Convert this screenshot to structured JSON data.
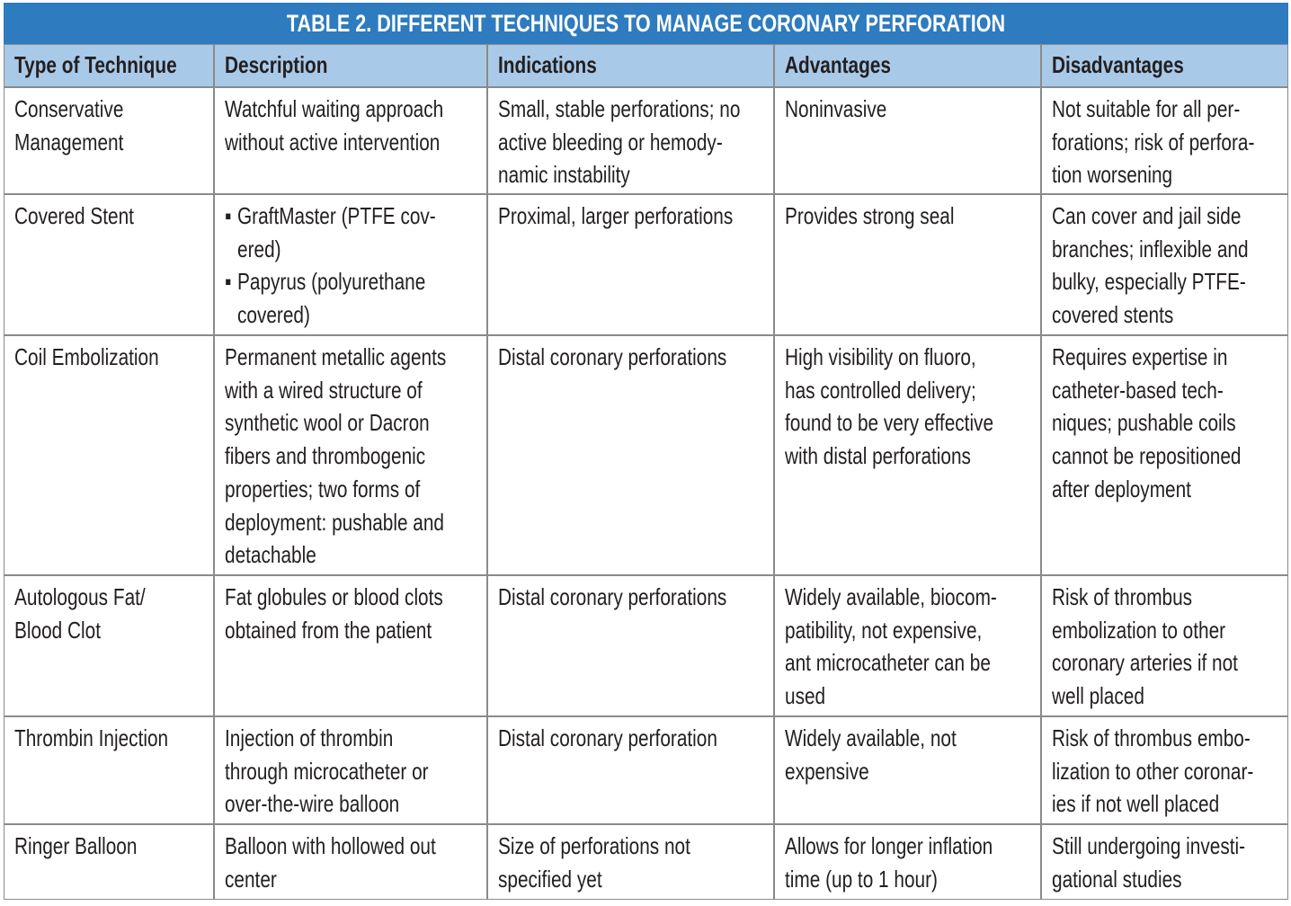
{
  "table": {
    "title": "TABLE 2.  DIFFERENT TECHNIQUES TO MANAGE CORONARY PERFORATION",
    "headers": [
      "Type of Technique",
      "Description",
      "Indications",
      "Advantages",
      "Disadvantages"
    ],
    "rows": [
      [
        [
          "Conservative",
          "Management"
        ],
        [
          "Watchful waiting approach",
          "without active intervention"
        ],
        [
          "Small, stable perforations; no",
          "active bleeding or hemody-",
          "namic instability"
        ],
        [
          "Noninvasive"
        ],
        [
          "Not suitable for all per-",
          "forations; risk of perfora-",
          "tion worsening"
        ]
      ],
      [
        [
          "Covered Stent"
        ],
        {
          "items": [
            [
              "GraftMaster (PTFE cov-",
              "ered)"
            ],
            [
              "Papyrus (polyurethane",
              "covered)"
            ]
          ]
        },
        [
          "Proximal, larger perforations"
        ],
        [
          "Provides strong seal"
        ],
        [
          "Can cover and jail side",
          "branches; inflexible and",
          "bulky, especially PTFE-",
          "covered stents"
        ]
      ],
      [
        [
          "Coil Embolization"
        ],
        [
          "Permanent metallic agents",
          "with a wired structure of",
          "synthetic wool or Dacron",
          "fibers and thrombogenic",
          "properties; two forms of",
          "deployment: pushable and",
          "detachable"
        ],
        [
          "Distal coronary perforations"
        ],
        [
          "High visibility on fluoro,",
          "has controlled delivery;",
          "found to be very effective",
          "with distal perforations"
        ],
        [
          "Requires expertise in",
          "catheter-based tech-",
          "niques; pushable coils",
          "cannot be repositioned",
          "after deployment"
        ]
      ],
      [
        [
          "Autologous Fat/",
          "Blood Clot"
        ],
        [
          "Fat globules or blood clots",
          "obtained from the patient"
        ],
        [
          "Distal coronary perforations"
        ],
        [
          "Widely available, biocom-",
          "patibility, not expensive,",
          "ant microcatheter can be",
          "used"
        ],
        [
          "Risk of thrombus",
          "embolization to other",
          "coronary arteries if not",
          "well placed"
        ]
      ],
      [
        [
          "Thrombin Injection"
        ],
        [
          "Injection of thrombin",
          "through microcatheter or",
          "over-the-wire balloon"
        ],
        [
          "Distal coronary perforation"
        ],
        [
          "Widely available, not",
          "expensive"
        ],
        [
          "Risk of thrombus embo-",
          "lization to other coronar-",
          "ies if not well placed"
        ]
      ],
      [
        [
          "Ringer Balloon"
        ],
        [
          "Balloon with hollowed out",
          "center"
        ],
        [
          "Size of perforations not",
          "specified yet"
        ],
        [
          "Allows for longer inflation",
          "time (up to 1 hour)"
        ],
        [
          "Still undergoing investi-",
          "gational studies"
        ]
      ]
    ]
  }
}
